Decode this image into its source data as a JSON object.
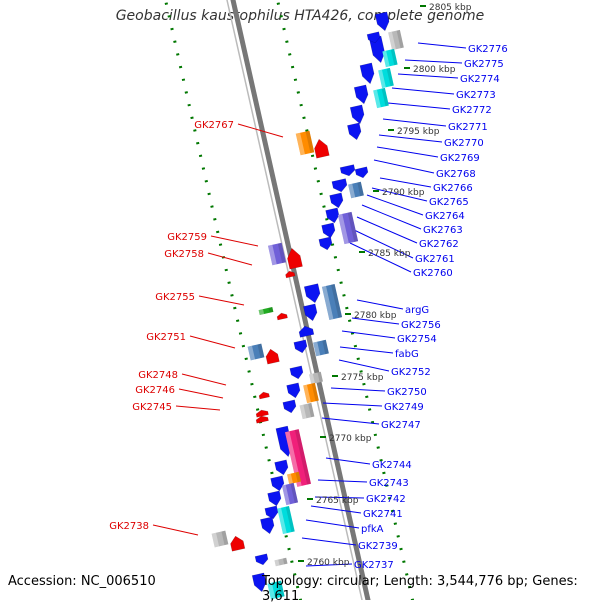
{
  "title": "Geobacillus kaustophilus HTA426, complete genome",
  "accession_text": "Accession: NC_006510",
  "topology_text": "Topology: circular; Length: 3,544,776 bp; Genes: 3,611",
  "colors": {
    "backbone": "#777777",
    "forward_label": "#0000ee",
    "reverse_label": "#dd0000",
    "tick": "#007700",
    "arrow_blue": "#0b14f2",
    "cog_orange": "#ff8c00",
    "cog_red": "#ee0000",
    "cog_purple": "#7060d8",
    "cog_cyan": "#00dddd",
    "cog_steel": "#4a7fb8",
    "cog_grey": "#b8b8b8",
    "cog_pink": "#f0207a",
    "cog_green": "#22aa22"
  },
  "scale_labels": [
    {
      "kbp": 2805,
      "text": "2805 kbp"
    },
    {
      "kbp": 2800,
      "text": "2800 kbp"
    },
    {
      "kbp": 2795,
      "text": "2795 kbp"
    },
    {
      "kbp": 2790,
      "text": "2790 kbp"
    },
    {
      "kbp": 2785,
      "text": "2785 kbp"
    },
    {
      "kbp": 2780,
      "text": "2780 kbp"
    },
    {
      "kbp": 2775,
      "text": "2775 kbp"
    },
    {
      "kbp": 2770,
      "text": "2770 kbp"
    },
    {
      "kbp": 2765,
      "text": "2765 kbp"
    },
    {
      "kbp": 2760,
      "text": "2760 kbp"
    }
  ],
  "forward_genes": [
    "GK2776",
    "GK2775",
    "GK2774",
    "GK2773",
    "GK2772",
    "GK2771",
    "GK2770",
    "GK2769",
    "GK2768",
    "GK2766",
    "GK2765",
    "GK2764",
    "GK2763",
    "GK2762",
    "GK2761",
    "GK2760",
    "argG",
    "GK2756",
    "GK2754",
    "fabG",
    "GK2752",
    "GK2750",
    "GK2749",
    "GK2747",
    "GK2744",
    "GK2743",
    "GK2742",
    "GK2741",
    "pfkA",
    "GK2739",
    "GK2737"
  ],
  "reverse_genes": [
    "GK2767",
    "GK2759",
    "GK2758",
    "GK2755",
    "GK2751",
    "GK2748",
    "GK2746",
    "GK2745",
    "GK2738"
  ]
}
